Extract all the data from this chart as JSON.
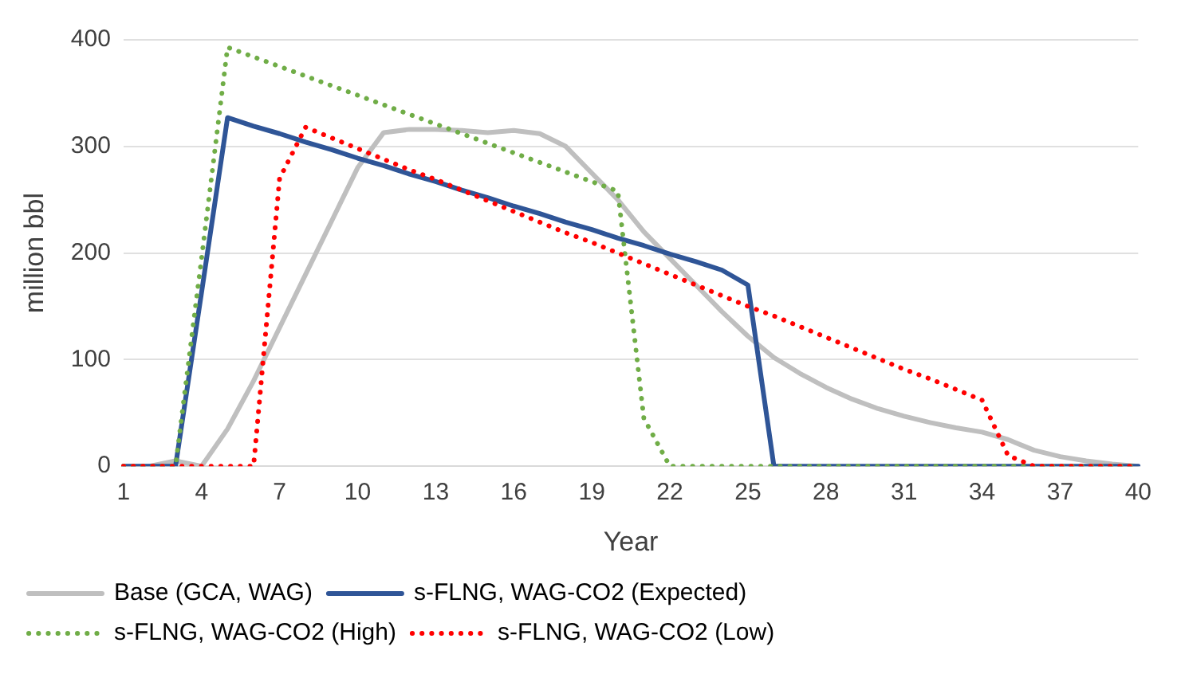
{
  "chart_data": {
    "type": "line",
    "xlabel": "Year",
    "ylabel": "million bbl",
    "categories": [
      "1",
      null,
      null,
      "4",
      null,
      null,
      "7",
      null,
      null,
      "10",
      null,
      null,
      "13",
      null,
      null,
      "16",
      null,
      null,
      "19",
      null,
      null,
      "22",
      null,
      null,
      "25",
      null,
      null,
      "28",
      null,
      null,
      "31",
      null,
      null,
      "34",
      null,
      null,
      "37",
      null,
      null,
      "40"
    ],
    "ylim": [
      0,
      400
    ],
    "yticks": [
      0,
      100,
      200,
      300,
      400
    ],
    "grid": "y",
    "legend": "bottom",
    "marker": "none",
    "series": [
      {
        "name": "Base (GCA, WAG)",
        "color": "#bfbfbf",
        "line_style": "solid",
        "values": [
          0,
          0,
          5,
          0,
          35,
          80,
          130,
          180,
          230,
          280,
          313,
          316,
          316,
          315,
          313,
          315,
          312,
          300,
          275,
          250,
          220,
          195,
          170,
          145,
          122,
          102,
          87,
          74,
          63,
          54,
          47,
          41,
          36,
          32,
          25,
          15,
          9,
          5,
          2,
          0
        ]
      },
      {
        "name": "s-FLNG, WAG-CO2 (Expected)",
        "color": "#2f5597",
        "line_style": "solid",
        "values": [
          0,
          0,
          0,
          163,
          327,
          319,
          312,
          304,
          297,
          289,
          282,
          274,
          267,
          259,
          252,
          244,
          237,
          229,
          222,
          214,
          207,
          199,
          192,
          184,
          170,
          0,
          0,
          0,
          0,
          0,
          0,
          0,
          0,
          0,
          0,
          0,
          0,
          0,
          0,
          0
        ]
      },
      {
        "name": "s-FLNG, WAG-CO2 (High)",
        "color": "#70ad47",
        "line_style": "dotted",
        "values": [
          0,
          0,
          0,
          195,
          393,
          384,
          375,
          366,
          357,
          348,
          339,
          330,
          321,
          312,
          303,
          294,
          285,
          276,
          267,
          258,
          45,
          0,
          0,
          0,
          0,
          0,
          0,
          0,
          0,
          0,
          0,
          0,
          0,
          0,
          0,
          0,
          0,
          0,
          0,
          0
        ]
      },
      {
        "name": "s-FLNG, WAG-CO2 (Low)",
        "color": "#ff0000",
        "line_style": "dotted",
        "values": [
          0,
          0,
          0,
          0,
          0,
          0,
          270,
          318,
          308,
          298,
          288,
          278,
          269,
          259,
          249,
          239,
          229,
          219,
          210,
          200,
          190,
          180,
          170,
          160,
          150,
          141,
          131,
          121,
          111,
          101,
          91,
          82,
          72,
          62,
          10,
          0,
          0,
          0,
          0,
          0
        ]
      }
    ]
  }
}
